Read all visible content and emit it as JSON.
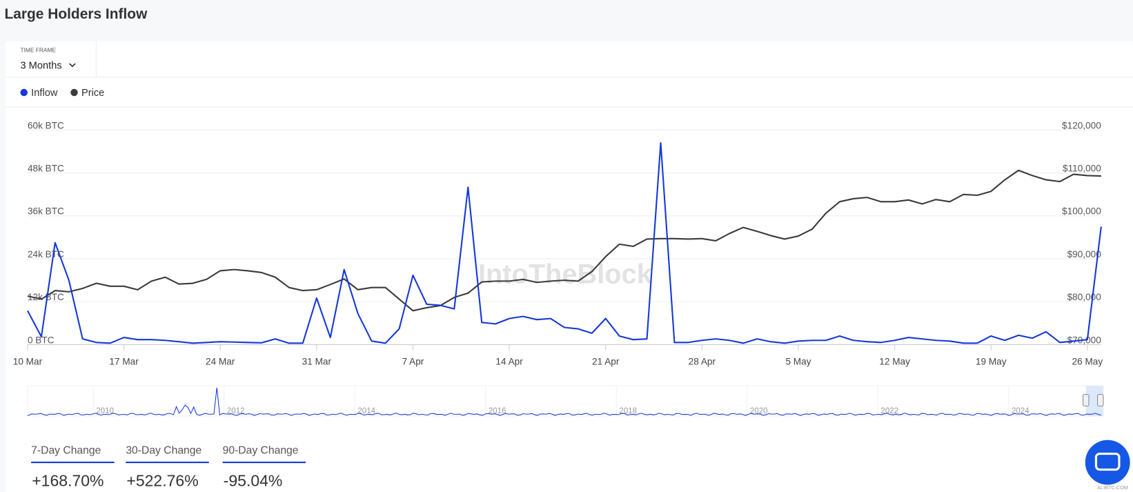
{
  "header": {
    "title": "Large Holders Inflow"
  },
  "controls": {
    "time_frame_label": "TIME FRAME",
    "time_frame_value": "3 Months"
  },
  "chart_data": {
    "type": "line",
    "categories": [
      "10 Mar",
      null,
      null,
      null,
      null,
      null,
      null,
      "17 Mar",
      null,
      null,
      null,
      null,
      null,
      null,
      "24 Mar",
      null,
      null,
      null,
      null,
      null,
      null,
      "31 Mar",
      null,
      null,
      null,
      null,
      null,
      null,
      "7 Apr",
      null,
      null,
      null,
      null,
      null,
      null,
      "14 Apr",
      null,
      null,
      null,
      null,
      null,
      null,
      "21 Apr",
      null,
      null,
      null,
      null,
      null,
      null,
      "28 Apr",
      null,
      null,
      null,
      null,
      null,
      null,
      "5 May",
      null,
      null,
      null,
      null,
      null,
      null,
      "12 May",
      null,
      null,
      null,
      null,
      null,
      null,
      "19 May",
      null,
      null,
      null,
      null,
      null,
      null,
      "26 May",
      null
    ],
    "series": [
      {
        "name": "Inflow",
        "color": "#1538d8",
        "axis": "y",
        "values": [
          9500,
          2200,
          28500,
          18000,
          1600,
          600,
          400,
          2000,
          1400,
          1400,
          1200,
          800,
          400,
          600,
          800,
          700,
          600,
          500,
          1600,
          400,
          400,
          13000,
          2000,
          21000,
          8700,
          1000,
          400,
          4400,
          19400,
          11300,
          11000,
          10000,
          44000,
          6200,
          5800,
          7300,
          7900,
          7000,
          7300,
          4800,
          4400,
          3200,
          7300,
          2400,
          1400,
          1600,
          56400,
          600,
          600,
          1200,
          1600,
          1200,
          400,
          1600,
          800,
          400,
          1000,
          1200,
          1200,
          2400,
          1200,
          800,
          600,
          1200,
          2000,
          1600,
          1200,
          1000,
          400,
          400,
          2400,
          1200,
          2600,
          1800,
          3600,
          600,
          1000,
          1400,
          33000
        ]
      },
      {
        "name": "Price",
        "color": "#3a3a3a",
        "axis": "y2",
        "values": [
          81300,
          80600,
          82600,
          82300,
          83100,
          84300,
          83600,
          83600,
          82800,
          84800,
          85700,
          84100,
          84300,
          85200,
          87200,
          87500,
          87200,
          86800,
          85700,
          83300,
          82600,
          82800,
          84000,
          85300,
          82800,
          83300,
          83300,
          80600,
          77900,
          78600,
          79100,
          81000,
          82000,
          84600,
          84800,
          84800,
          85200,
          84500,
          84800,
          85000,
          84800,
          87000,
          90500,
          93400,
          92900,
          94600,
          94700,
          94700,
          94600,
          94700,
          94200,
          95900,
          97300,
          96400,
          95400,
          94600,
          95300,
          96900,
          100600,
          103300,
          104000,
          104300,
          103300,
          103300,
          103700,
          102800,
          103800,
          103300,
          105000,
          104800,
          105700,
          108400,
          110600,
          109400,
          108400,
          108000,
          109700,
          109400,
          109300
        ]
      }
    ],
    "ylim": [
      0,
      60000
    ],
    "yticks": [
      {
        "value": 0,
        "label": "0 BTC"
      },
      {
        "value": 12000,
        "label": "12k BTC"
      },
      {
        "value": 24000,
        "label": "24k BTC"
      },
      {
        "value": 36000,
        "label": "36k BTC"
      },
      {
        "value": 48000,
        "label": "48k BTC"
      },
      {
        "value": 60000,
        "label": "60k BTC"
      }
    ],
    "y2lim": [
      70000,
      120000
    ],
    "y2ticks": [
      {
        "value": 70000,
        "label": "$70,000"
      },
      {
        "value": 80000,
        "label": "$80,000"
      },
      {
        "value": 90000,
        "label": "$90,000"
      },
      {
        "value": 100000,
        "label": "$100,000"
      },
      {
        "value": 110000,
        "label": "$110,000"
      },
      {
        "value": 120000,
        "label": "$120,000"
      }
    ],
    "grid": true,
    "legend": "top-left"
  },
  "watermark": "IntoTheBlock",
  "navigator": {
    "year_labels": [
      "2010",
      "2012",
      "2014",
      "2016",
      "2018",
      "2020",
      "2022",
      "2024"
    ]
  },
  "changes": [
    {
      "label": "7-Day Change",
      "value": "+168.70%"
    },
    {
      "label": "30-Day Change",
      "value": "+522.76%"
    },
    {
      "label": "90-Day Change",
      "value": "-95.04%"
    }
  ],
  "corner_logo": "ALIBTC.COM"
}
